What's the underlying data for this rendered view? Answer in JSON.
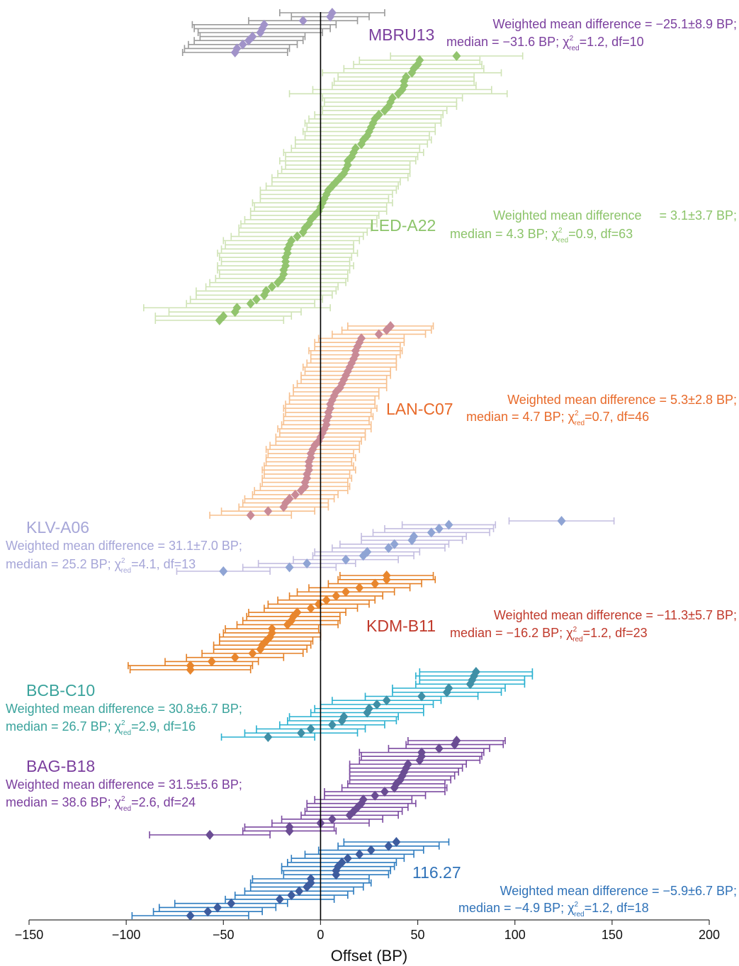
{
  "chart_data": {
    "type": "errorbar",
    "xlabel": "Offset (BP)",
    "xlim": [
      -150,
      200
    ],
    "xticks": [
      {
        "value": -150,
        "label": "−150"
      },
      {
        "value": -100,
        "label": "−100"
      },
      {
        "value": -50,
        "label": "−50"
      },
      0,
      50,
      100,
      150,
      200
    ],
    "zero_line": true,
    "groups": [
      {
        "name": "MBRU13",
        "point_color": "#a193c9",
        "bar_color": "#9a9a9a",
        "label_color": "#7b3f9e",
        "note": {
          "line1": "Weighted mean difference = −25.1±8.9 BP;",
          "line2a": "median = −31.6 BP; χ",
          "sup": "2",
          "sub": "red",
          "line2b": "=1.2, df=10"
        },
        "values": [
          6,
          5,
          -9,
          -29,
          -30,
          -31,
          -35,
          -37,
          -40,
          -43,
          -44
        ],
        "errors": [
          27,
          20,
          28,
          37,
          35,
          32,
          27,
          28,
          28,
          27,
          27
        ]
      },
      {
        "name": "LED-A22",
        "point_color": "#92c46e",
        "bar_color": "#cfe3b5",
        "label_color": "#8cc46a",
        "note": {
          "line1": "Weighted mean difference     = 3.1±3.7 BP;",
          "line2a": "median = 4.3 BP; χ",
          "sup": "2",
          "sub": "red",
          "line2b": "=0.9, df=63"
        },
        "values": [
          70,
          51,
          50,
          48,
          47,
          44,
          43,
          43,
          42,
          40,
          37,
          36,
          35,
          33,
          30,
          28,
          27,
          26,
          25,
          24,
          22,
          21,
          18,
          17,
          16,
          14,
          14,
          13,
          12,
          10,
          8,
          6,
          4,
          3,
          2,
          1,
          0,
          -1,
          -3,
          -5,
          -6,
          -8,
          -9,
          -12,
          -15,
          -16,
          -17,
          -17,
          -18,
          -18,
          -18,
          -19,
          -19,
          -20,
          -22,
          -25,
          -28,
          -29,
          -33,
          -36,
          -43,
          -44,
          -50,
          -52
        ],
        "errors": [
          34,
          31,
          33,
          36,
          46,
          35,
          36,
          37,
          46,
          56,
          36,
          34,
          35,
          32,
          33,
          34,
          35,
          33,
          34,
          32,
          35,
          34,
          33,
          36,
          34,
          35,
          32,
          33,
          34,
          35,
          33,
          34,
          35,
          34,
          33,
          36,
          34,
          35,
          33,
          34,
          35,
          34,
          33,
          34,
          35,
          33,
          34,
          36,
          34,
          33,
          35,
          34,
          33,
          34,
          35,
          34,
          36,
          35,
          34,
          33,
          48,
          34,
          35,
          33
        ]
      },
      {
        "name": "LAN-C07",
        "point_color": "#c98a96",
        "bar_color": "#f7c08f",
        "label_color": "#e86a2a",
        "note": {
          "line1": "Weighted mean difference = 5.3±2.8 BP;",
          "line2a": "median = 4.7 BP; χ",
          "sup": "2",
          "sub": "red",
          "line2b": "=0.7, df=46"
        },
        "values": [
          36,
          34,
          30,
          21,
          20,
          19,
          18,
          18,
          17,
          16,
          15,
          14,
          13,
          12,
          11,
          10,
          8,
          7,
          6,
          5,
          5,
          4,
          4,
          3,
          3,
          2,
          1,
          0,
          -1,
          -3,
          -4,
          -5,
          -5,
          -6,
          -6,
          -6,
          -7,
          -7,
          -8,
          -8,
          -10,
          -13,
          -16,
          -18,
          -19,
          -27,
          -36
        ],
        "errors": [
          22,
          23,
          24,
          22,
          23,
          22,
          24,
          23,
          22,
          23,
          24,
          22,
          23,
          22,
          23,
          24,
          22,
          23,
          22,
          23,
          24,
          22,
          23,
          22,
          23,
          24,
          22,
          23,
          22,
          23,
          24,
          22,
          23,
          22,
          23,
          24,
          22,
          23,
          22,
          23,
          24,
          22,
          23,
          22,
          23,
          24,
          21
        ]
      },
      {
        "name": "KLV-A06",
        "point_color": "#8fa4d4",
        "bar_color": "#c3bde0",
        "label_color": "#a6a6d8",
        "note": {
          "line1": "Weighted mean difference = 31.1±7.0 BP;",
          "line2a": "median = 25.2 BP; χ",
          "sup": "2",
          "sub": "red",
          "line2b": "=4.1, df=13"
        },
        "values": [
          124,
          66,
          61,
          57,
          48,
          47,
          38,
          35,
          24,
          22,
          13,
          -7,
          -16,
          -50
        ],
        "errors": [
          27,
          24,
          28,
          30,
          27,
          26,
          28,
          29,
          27,
          26,
          27,
          25,
          24,
          24
        ]
      },
      {
        "name": "KDM-B11",
        "point_color": "#e8862d",
        "bar_color": "#e47f24",
        "label_color": "#c0392b",
        "note": {
          "line1": "Weighted mean difference = −11.3±5.7 BP;",
          "line2a": "median = −16.2 BP; χ",
          "sup": "2",
          "sub": "red",
          "line2b": "=1.2, df=23"
        },
        "values": [
          34,
          34,
          28,
          20,
          13,
          8,
          3,
          -1,
          -5,
          -12,
          -14,
          -15,
          -17,
          -25,
          -25,
          -26,
          -28,
          -30,
          -31,
          -35,
          -44,
          -56,
          -67,
          -67
        ],
        "errors": [
          24,
          25,
          24,
          26,
          25,
          24,
          25,
          26,
          24,
          25,
          24,
          25,
          26,
          24,
          25,
          26,
          24,
          25,
          24,
          26,
          25,
          24,
          32,
          31
        ]
      },
      {
        "name": "BCB-C10",
        "point_color": "#3f8fa6",
        "bar_color": "#28b0d0",
        "label_color": "#3aa39c",
        "note": {
          "line1": "Weighted mean difference = 30.8±6.7 BP;",
          "line2a": "median = 26.7 BP; χ",
          "sup": "2",
          "sub": "red",
          "line2b": "=2.9, df=16"
        },
        "values": [
          80,
          79,
          78,
          77,
          66,
          65,
          52,
          34,
          29,
          25,
          24,
          12,
          11,
          6,
          -5,
          -10,
          -27
        ],
        "errors": [
          29,
          30,
          27,
          28,
          29,
          28,
          29,
          28,
          29,
          28,
          29,
          28,
          28,
          27,
          28,
          29,
          24
        ]
      },
      {
        "name": "BAG-B18",
        "point_color": "#6a4c93",
        "bar_color": "#7b4aa0",
        "label_color": "#7b3f9e",
        "note": {
          "line1": "Weighted mean difference = 31.5±5.6 BP;",
          "line2a": "median = 38.6 BP; χ",
          "sup": "2",
          "sub": "red",
          "line2b": "=2.6, df=24"
        },
        "values": [
          70,
          69,
          61,
          52,
          52,
          51,
          45,
          44,
          43,
          42,
          41,
          39,
          38,
          33,
          28,
          22,
          21,
          19,
          17,
          15,
          6,
          0,
          -16,
          -16,
          -57
        ],
        "errors": [
          25,
          25,
          26,
          32,
          31,
          31,
          30,
          29,
          28,
          27,
          26,
          25,
          27,
          31,
          26,
          25,
          28,
          26,
          25,
          25,
          26,
          25,
          23,
          24,
          31
        ]
      },
      {
        "name": "116.27",
        "point_color": "#3d5c9e",
        "bar_color": "#2c7bbf",
        "label_color": "#2f72b8",
        "note": {
          "line1": "Weighted mean difference = −5.9±6.7 BP;",
          "line2a": "median = −4.9 BP; χ",
          "sup": "2",
          "sub": "red",
          "line2b": "=1.2, df=18"
        },
        "values": [
          39,
          35,
          26,
          20,
          14,
          11,
          9,
          8,
          8,
          -5,
          -5,
          -7,
          -11,
          -15,
          -21,
          -46,
          -53,
          -58,
          -67
        ],
        "errors": [
          27,
          26,
          27,
          28,
          29,
          28,
          29,
          28,
          27,
          30,
          31,
          29,
          28,
          29,
          28,
          29,
          30,
          28,
          30
        ]
      }
    ]
  }
}
